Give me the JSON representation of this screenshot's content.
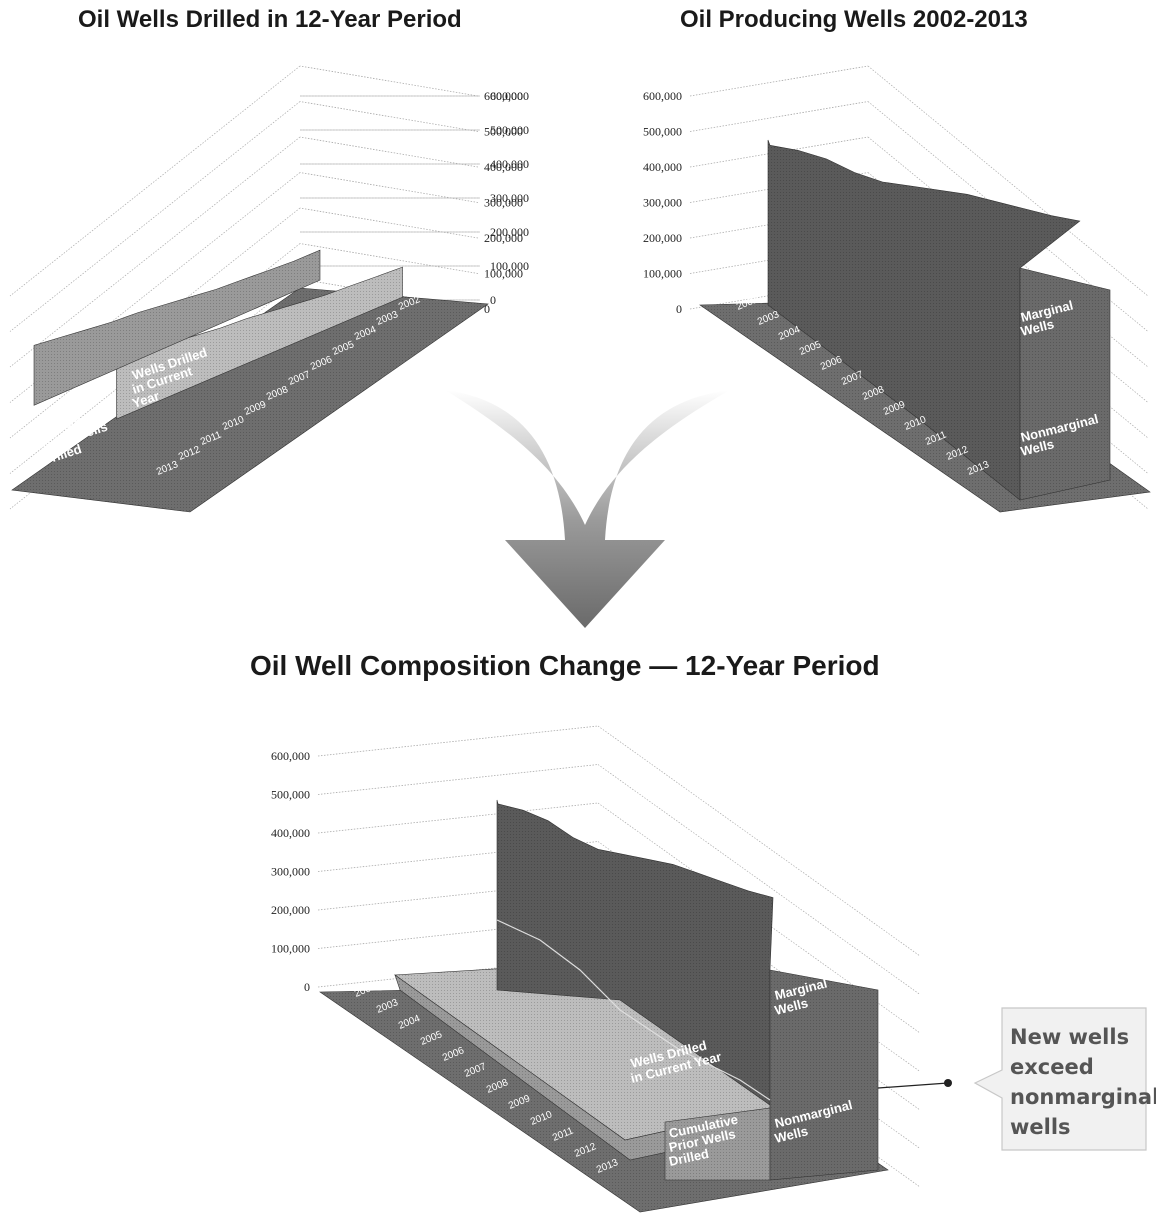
{
  "titles": {
    "drilled": "Oil Wells Drilled in 12-Year Period",
    "producing": "Oil Producing Wells 2002-2013",
    "composition": "Oil Well Composition Change — 12-Year Period"
  },
  "chart_data": [
    {
      "type": "area",
      "title": "Oil Wells Drilled in 12-Year Period",
      "ylim": [
        0,
        600000
      ],
      "yticks": [
        "600,000",
        "500,000",
        "400,000",
        "300,000",
        "200,000",
        "100,000",
        "0"
      ],
      "categories": [
        "2002",
        "2003",
        "2004",
        "2005",
        "2006",
        "2007",
        "2008",
        "2009",
        "2010",
        "2011",
        "2012",
        "2013"
      ],
      "series": [
        {
          "name": "Cumulative Prior Wells Drilled",
          "values": [
            0,
            15000,
            35000,
            55000,
            75000,
            100000,
            125000,
            150000,
            170000,
            195000,
            220000,
            245000
          ]
        },
        {
          "name": "Wells Drilled in Current Year",
          "values": [
            15000,
            20000,
            20000,
            20000,
            25000,
            25000,
            25000,
            20000,
            25000,
            25000,
            25000,
            25000
          ]
        }
      ],
      "grid": true
    },
    {
      "type": "area",
      "title": "Oil Producing Wells 2002-2013",
      "ylim": [
        0,
        600000
      ],
      "yticks": [
        "600,000",
        "500,000",
        "400,000",
        "300,000",
        "200,000",
        "100,000",
        "0"
      ],
      "categories": [
        "2002",
        "2003",
        "2004",
        "2005",
        "2006",
        "2007",
        "2008",
        "2009",
        "2010",
        "2011",
        "2012",
        "2013"
      ],
      "series": [
        {
          "name": "Nonmarginal Wells",
          "values": [
            100000,
            95000,
            90000,
            85000,
            82000,
            80000,
            78000,
            76000,
            75000,
            74000,
            73000,
            72000
          ]
        },
        {
          "name": "Marginal Wells",
          "values": [
            395000,
            385000,
            365000,
            330000,
            305000,
            295000,
            285000,
            275000,
            255000,
            235000,
            215000,
            200000
          ]
        }
      ],
      "grid": true
    },
    {
      "type": "area",
      "title": "Oil Well Composition Change — 12-Year Period",
      "ylim": [
        0,
        600000
      ],
      "yticks": [
        "600,000",
        "500,000",
        "400,000",
        "300,000",
        "200,000",
        "100,000",
        "0"
      ],
      "categories": [
        "2002",
        "2003",
        "2004",
        "2005",
        "2006",
        "2007",
        "2008",
        "2009",
        "2010",
        "2011",
        "2012",
        "2013"
      ],
      "series": [
        {
          "name": "Cumulative Prior Wells Drilled",
          "values": [
            0,
            15000,
            35000,
            55000,
            75000,
            100000,
            125000,
            150000,
            170000,
            195000,
            220000,
            245000
          ]
        },
        {
          "name": "Wells Drilled in Current Year",
          "values": [
            15000,
            20000,
            20000,
            20000,
            25000,
            25000,
            25000,
            20000,
            25000,
            25000,
            25000,
            25000
          ]
        },
        {
          "name": "Nonmarginal Wells",
          "values": [
            100000,
            95000,
            90000,
            85000,
            82000,
            80000,
            78000,
            76000,
            75000,
            74000,
            73000,
            72000
          ]
        },
        {
          "name": "Marginal Wells",
          "values": [
            395000,
            385000,
            365000,
            330000,
            305000,
            295000,
            285000,
            275000,
            255000,
            235000,
            215000,
            200000
          ]
        }
      ],
      "annotations": [
        "New wells exceed nonmarginal wells"
      ],
      "grid": true
    }
  ],
  "labels": {
    "cumulative": [
      "Cumulative",
      "Prior Wells",
      "Drilled"
    ],
    "current": [
      "Wells Drilled",
      "in Current",
      "Year"
    ],
    "current_b": [
      "Wells Drilled",
      "in Current Year"
    ],
    "marginal": [
      "Marginal",
      "Wells"
    ],
    "nonmarginal": [
      "Nonmarginal",
      "Wells"
    ],
    "callout": [
      "New wells",
      "exceed",
      "nonmarginal",
      "wells"
    ]
  },
  "colors": {
    "floor": "#6e6e6e",
    "cumulative": "#9a9a9a",
    "current": "#bdbdbd",
    "nonmarginal": "#6a6a6a",
    "marginal": "#5a5a5a",
    "grid": "#aaaaaa",
    "arrow": "#777777"
  }
}
